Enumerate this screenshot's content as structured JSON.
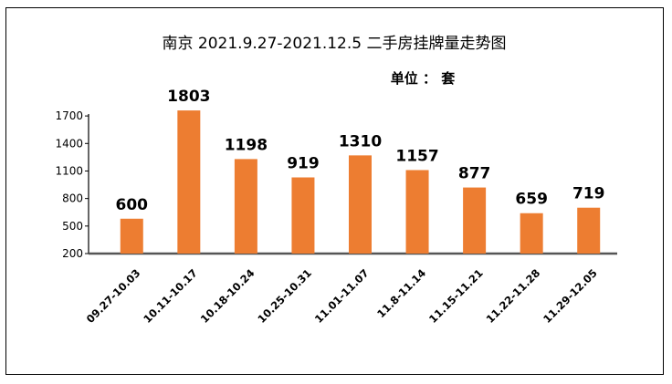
{
  "chart_data": {
    "type": "bar",
    "title": "南京 2021.9.27-2021.12.5 二手房挂牌量走势图",
    "unit_label": "单位 ： 套",
    "categories": [
      "09.27-10.03",
      "10.11-10.17",
      "10.18-10.24",
      "10.25-10.31",
      "11.01-11.07",
      "11.8-11.14",
      "11.15-11.21",
      "11.22-11.28",
      "11.29-12.05"
    ],
    "values": [
      600,
      1803,
      1198,
      919,
      1310,
      1157,
      877,
      659,
      719
    ],
    "bar_heights_on_axis": [
      580,
      1760,
      1230,
      1030,
      1270,
      1110,
      920,
      640,
      700
    ],
    "yticks": [
      200,
      500,
      800,
      1100,
      1400,
      1700
    ],
    "ylim": [
      200,
      1900
    ],
    "bar_color": "#ED7D31",
    "grid": false,
    "legend": "none"
  }
}
